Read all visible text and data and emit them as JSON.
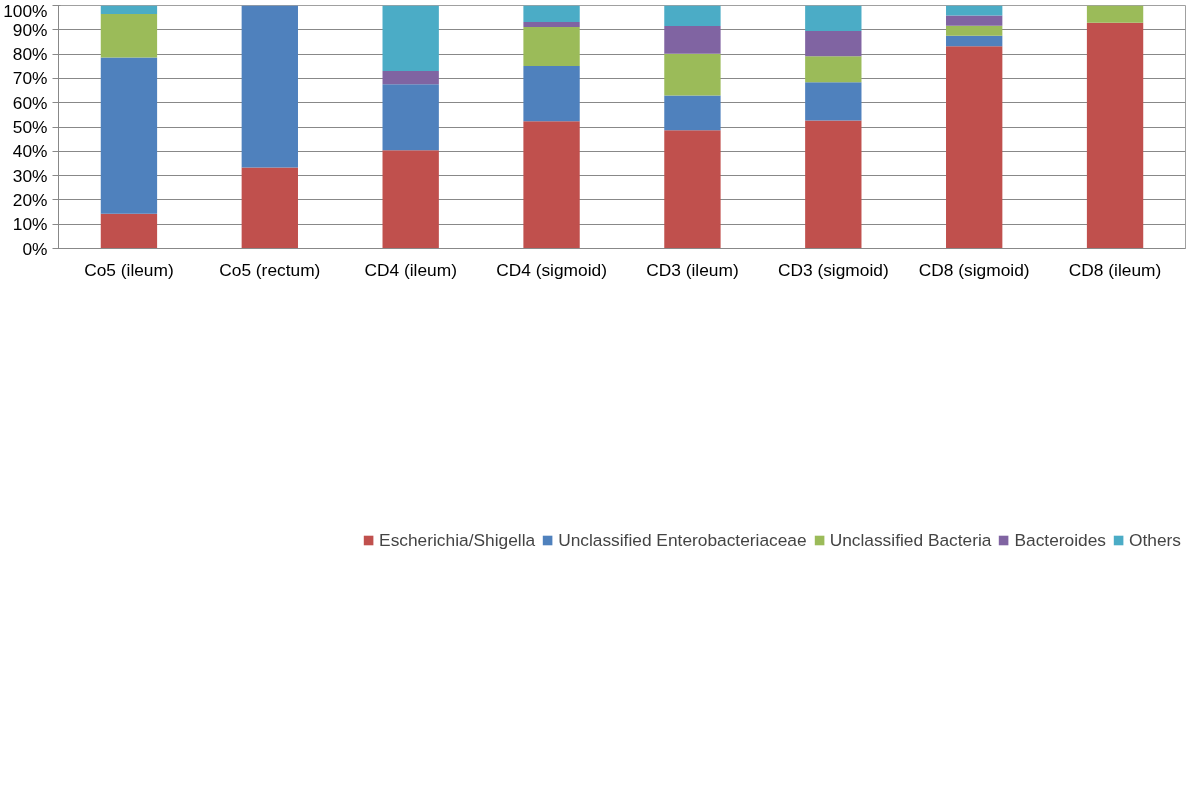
{
  "chart_data": {
    "type": "bar",
    "stacked": true,
    "categories": [
      "Co5 (ileum)",
      "Co5 (rectum)",
      "CD4 (ileum)",
      "CD4 (sigmoid)",
      "CD3 (ileum)",
      "CD3 (sigmoid)",
      "CD8 (sigmoid)",
      "CD8 (ileum)"
    ],
    "series": [
      {
        "name": "Escherichia/Shigella",
        "color": "#c0504d",
        "values": [
          14.3,
          33.3,
          40.4,
          52.4,
          48.7,
          52.7,
          83.2,
          92.9
        ]
      },
      {
        "name": "Unclassified Enterobacteriaceae",
        "color": "#4f81bd",
        "values": [
          64.3,
          66.7,
          27.2,
          22.7,
          14.3,
          15.7,
          4.4,
          0
        ]
      },
      {
        "name": "Unclassified Bacteria",
        "color": "#9bbb59",
        "values": [
          17.9,
          0,
          0,
          16.1,
          17.1,
          10.7,
          4.1,
          7.1
        ]
      },
      {
        "name": "Bacteroides",
        "color": "#8064a2",
        "values": [
          0,
          0,
          5.4,
          2.0,
          11.5,
          10.4,
          4.2,
          0
        ]
      },
      {
        "name": "Others",
        "color": "#4bacc6",
        "values": [
          3.5,
          0,
          27.0,
          6.8,
          8.4,
          10.5,
          4.1,
          0
        ]
      }
    ],
    "ylim": [
      0,
      100
    ],
    "yticks": [
      {
        "value": 0,
        "label": "0%"
      },
      {
        "value": 10,
        "label": "10%"
      },
      {
        "value": 20,
        "label": "20%"
      },
      {
        "value": 30,
        "label": "30%"
      },
      {
        "value": 40,
        "label": "40%"
      },
      {
        "value": 50,
        "label": "50%"
      },
      {
        "value": 60,
        "label": "60%"
      },
      {
        "value": 70,
        "label": "70%"
      },
      {
        "value": 80,
        "label": "80%"
      },
      {
        "value": 90,
        "label": "90%"
      },
      {
        "value": 100,
        "label": "100%"
      }
    ],
    "grid": "y",
    "legend": "bottom"
  }
}
